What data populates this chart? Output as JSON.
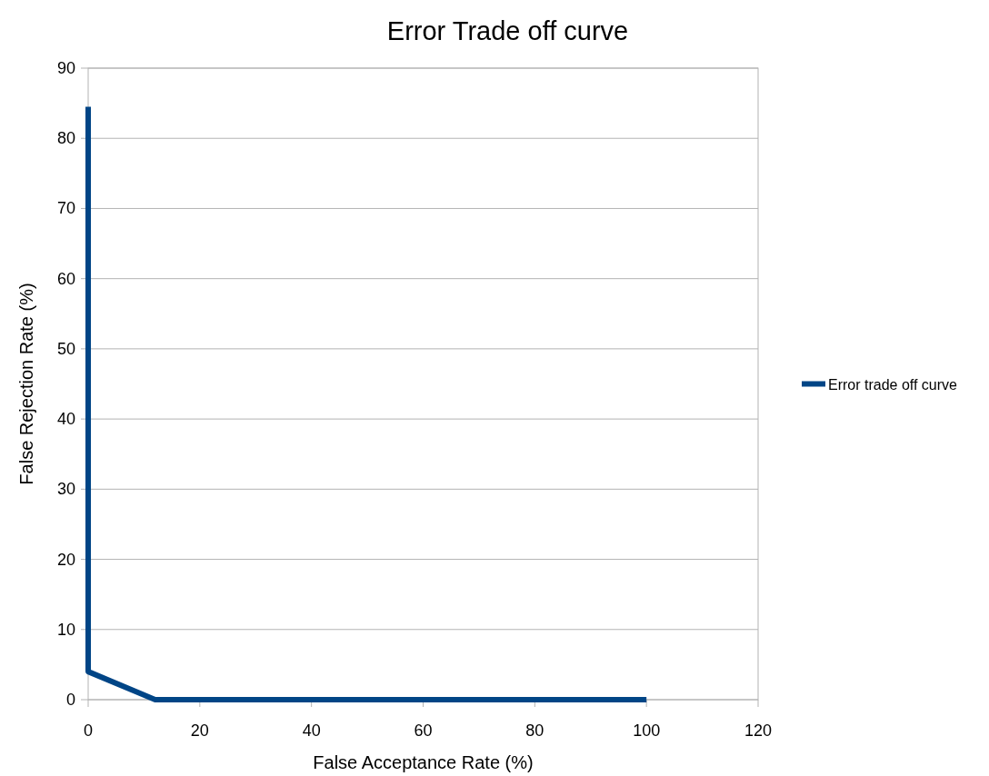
{
  "chart_data": {
    "type": "line",
    "title": "Error Trade off curve",
    "xlabel": "False Acceptance Rate (%)",
    "ylabel": "False Rejection Rate (%)",
    "x": [
      0,
      0,
      12,
      100
    ],
    "series": [
      {
        "name": "Error trade off curve",
        "color": "#004586",
        "values": [
          84.5,
          4,
          0,
          0
        ]
      }
    ],
    "xlim": [
      0,
      120
    ],
    "xticks": [
      0,
      20,
      40,
      60,
      80,
      100,
      120
    ],
    "ylim": [
      0,
      90
    ],
    "yticks": [
      0,
      10,
      20,
      30,
      40,
      50,
      60,
      70,
      80,
      90
    ],
    "grid": "y",
    "legend": "right",
    "marker": "none",
    "line_style": "solid"
  }
}
